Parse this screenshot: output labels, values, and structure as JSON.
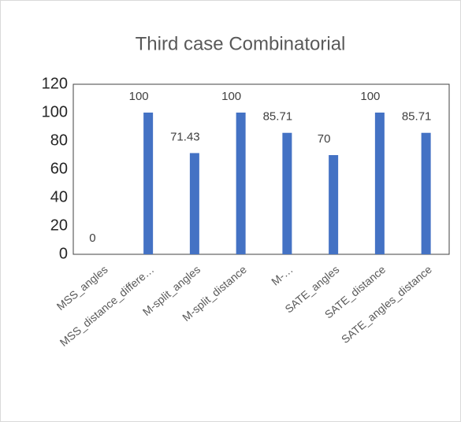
{
  "chart_data": {
    "type": "bar",
    "title": "Third case Combinatorial",
    "categories": [
      "MSS_angles",
      "MSS_distance_differe…",
      "M-split_angles",
      "M-split_distance",
      "M-…",
      "SATE_angles",
      "SATE_distance",
      "SATE_angles_distance"
    ],
    "values": [
      0,
      100,
      71.43,
      100,
      85.71,
      70,
      100,
      85.71
    ],
    "color": "#4472c4",
    "ylim": [
      0,
      120
    ],
    "yticks": [
      0,
      20,
      40,
      60,
      80,
      100,
      120
    ],
    "grid": false
  }
}
